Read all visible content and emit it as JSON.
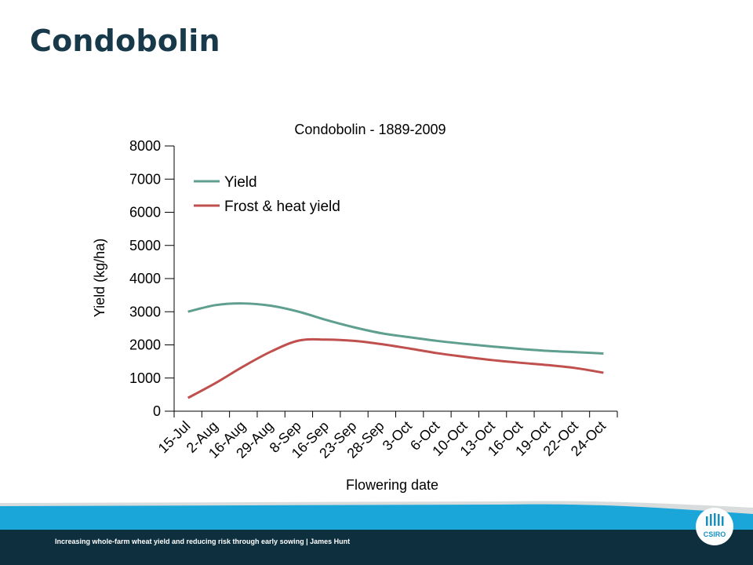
{
  "slide": {
    "title": "Condobolin",
    "footer_text": "Increasing whole-farm wheat yield and reducing risk through early sowing | James Hunt",
    "logo_text": "CSIRO"
  },
  "colors": {
    "title": "#17394a",
    "yield_series": "#5f9f8f",
    "frost_series": "#c0504d",
    "footer_band": "#0e2f3d",
    "footer_accent": "#1aa6d8"
  },
  "chart_data": {
    "type": "line",
    "title": "Condobolin - 1889-2009",
    "xlabel": "Flowering date",
    "ylabel": "Yield (kg/ha)",
    "ylim": [
      0,
      8000
    ],
    "yticks": [
      0,
      1000,
      2000,
      3000,
      4000,
      5000,
      6000,
      7000,
      8000
    ],
    "categories": [
      "15-Jul",
      "2-Aug",
      "16-Aug",
      "29-Aug",
      "8-Sep",
      "16-Sep",
      "23-Sep",
      "28-Sep",
      "3-Oct",
      "6-Oct",
      "10-Oct",
      "13-Oct",
      "16-Oct",
      "19-Oct",
      "22-Oct",
      "24-Oct"
    ],
    "grid": false,
    "legend_position": "top-left",
    "series": [
      {
        "name": "Yield",
        "color": "#5f9f8f",
        "values": [
          3000,
          3200,
          3250,
          3180,
          3000,
          2750,
          2530,
          2350,
          2230,
          2120,
          2030,
          1950,
          1880,
          1820,
          1780,
          1740
        ]
      },
      {
        "name": "Frost & heat yield",
        "color": "#c0504d",
        "values": [
          400,
          850,
          1350,
          1800,
          2130,
          2160,
          2120,
          2020,
          1890,
          1750,
          1640,
          1540,
          1460,
          1390,
          1300,
          1160
        ]
      }
    ]
  }
}
